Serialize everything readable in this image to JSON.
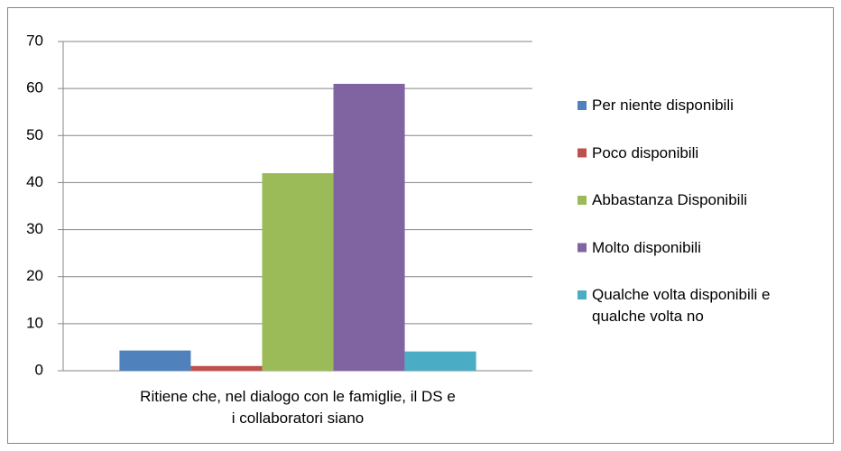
{
  "chart_data": {
    "type": "bar",
    "categories": [
      "Ritiene che, nel dialogo con le famiglie, il DS e i collaboratori siano"
    ],
    "series": [
      {
        "name": "Per niente disponibili",
        "color": "#4f81bd",
        "values": [
          4.3
        ]
      },
      {
        "name": "Poco disponibili",
        "color": "#c0504d",
        "values": [
          1
        ]
      },
      {
        "name": "Abbastanza Disponibili",
        "color": "#9bbb59",
        "values": [
          42
        ]
      },
      {
        "name": "Molto disponibili",
        "color": "#8064a2",
        "values": [
          61
        ]
      },
      {
        "name": "Qualche volta disponibili e qualche volta no",
        "color": "#4bacc6",
        "values": [
          4.1
        ]
      }
    ],
    "ylim": [
      0,
      70
    ],
    "yticks": [
      0,
      10,
      20,
      30,
      40,
      50,
      60,
      70
    ],
    "grid": true,
    "legend": "right"
  }
}
